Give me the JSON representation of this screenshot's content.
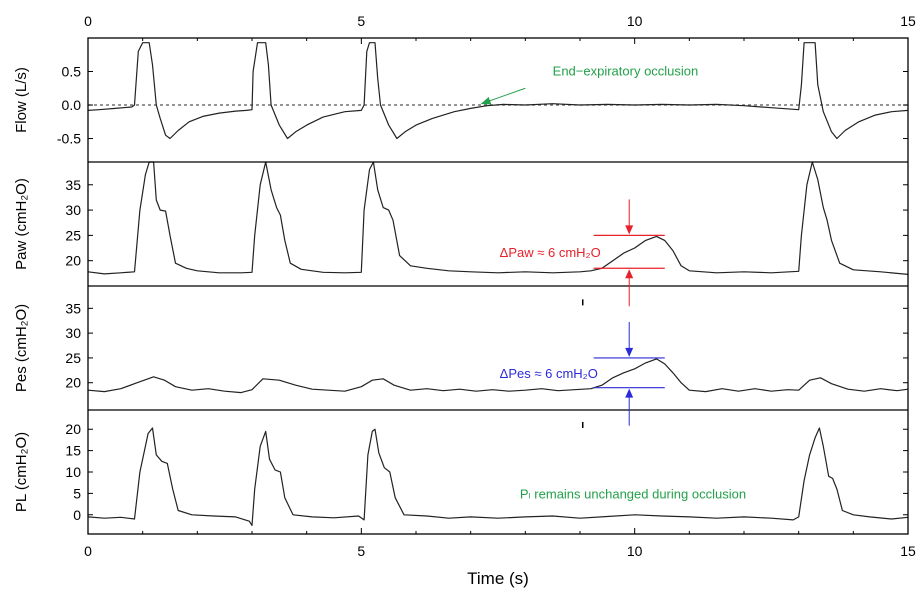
{
  "chart_data": {
    "type": "line",
    "xlabel": "Time (s)",
    "xlim": [
      0,
      15
    ],
    "xticks": [
      "0",
      "5",
      "10",
      "15"
    ],
    "x_top_ticks": [
      "0",
      "5",
      "10",
      "15"
    ],
    "colors": {
      "trace": "#222222",
      "red": "#e8202a",
      "blue": "#2a2ad8",
      "green": "#22a04a",
      "zero": "#555555"
    },
    "panels": [
      {
        "id": "flow",
        "ylabel": "Flow (L/s)",
        "ylim": [
          -0.85,
          1.0
        ],
        "yticks": [
          "0.5",
          "0.0",
          "-0.5"
        ],
        "ytick_values": [
          0.5,
          0.0,
          -0.5
        ],
        "zero_line": true,
        "points": [
          [
            0.0,
            -0.08
          ],
          [
            0.2,
            -0.07
          ],
          [
            0.5,
            -0.05
          ],
          [
            0.8,
            -0.03
          ],
          [
            0.85,
            0.0
          ],
          [
            0.92,
            0.8
          ],
          [
            1.0,
            0.93
          ],
          [
            1.12,
            0.93
          ],
          [
            1.18,
            0.6
          ],
          [
            1.25,
            0.0
          ],
          [
            1.32,
            -0.2
          ],
          [
            1.42,
            -0.45
          ],
          [
            1.5,
            -0.5
          ],
          [
            1.65,
            -0.38
          ],
          [
            1.85,
            -0.25
          ],
          [
            2.1,
            -0.17
          ],
          [
            2.4,
            -0.12
          ],
          [
            2.7,
            -0.09
          ],
          [
            2.9,
            -0.08
          ],
          [
            3.0,
            -0.07
          ],
          [
            3.02,
            0.5
          ],
          [
            3.1,
            0.93
          ],
          [
            3.25,
            0.93
          ],
          [
            3.3,
            0.6
          ],
          [
            3.35,
            0.0
          ],
          [
            3.5,
            -0.3
          ],
          [
            3.65,
            -0.5
          ],
          [
            3.8,
            -0.4
          ],
          [
            4.0,
            -0.3
          ],
          [
            4.3,
            -0.18
          ],
          [
            4.7,
            -0.1
          ],
          [
            5.0,
            -0.08
          ],
          [
            5.05,
            0.0
          ],
          [
            5.1,
            0.8
          ],
          [
            5.15,
            0.93
          ],
          [
            5.25,
            0.93
          ],
          [
            5.3,
            0.4
          ],
          [
            5.35,
            0.0
          ],
          [
            5.5,
            -0.3
          ],
          [
            5.65,
            -0.5
          ],
          [
            5.8,
            -0.4
          ],
          [
            6.0,
            -0.3
          ],
          [
            6.3,
            -0.2
          ],
          [
            6.7,
            -0.1
          ],
          [
            7.0,
            -0.05
          ],
          [
            7.3,
            -0.01
          ],
          [
            7.6,
            0.01
          ],
          [
            8.0,
            0.0
          ],
          [
            8.5,
            0.02
          ],
          [
            9.0,
            0.0
          ],
          [
            9.5,
            0.01
          ],
          [
            10.0,
            0.0
          ],
          [
            10.5,
            0.01
          ],
          [
            11.0,
            0.0
          ],
          [
            11.5,
            0.01
          ],
          [
            12.0,
            -0.01
          ],
          [
            12.5,
            -0.04
          ],
          [
            13.0,
            -0.07
          ],
          [
            13.05,
            0.3
          ],
          [
            13.1,
            0.93
          ],
          [
            13.3,
            0.93
          ],
          [
            13.35,
            0.3
          ],
          [
            13.45,
            -0.1
          ],
          [
            13.6,
            -0.4
          ],
          [
            13.7,
            -0.5
          ],
          [
            13.85,
            -0.38
          ],
          [
            14.1,
            -0.25
          ],
          [
            14.4,
            -0.15
          ],
          [
            14.7,
            -0.1
          ],
          [
            15.0,
            -0.08
          ]
        ]
      },
      {
        "id": "paw",
        "ylabel": "Paw (cmH₂O)",
        "ylim": [
          15,
          39.5
        ],
        "yticks": [
          "35",
          "30",
          "25",
          "20"
        ],
        "ytick_values": [
          35,
          30,
          25,
          20
        ],
        "points": [
          [
            0.0,
            17.8
          ],
          [
            0.3,
            17.4
          ],
          [
            0.6,
            17.6
          ],
          [
            0.85,
            17.8
          ],
          [
            0.95,
            30
          ],
          [
            1.05,
            37
          ],
          [
            1.12,
            39.5
          ],
          [
            1.2,
            39.5
          ],
          [
            1.25,
            32
          ],
          [
            1.32,
            30
          ],
          [
            1.42,
            29.8
          ],
          [
            1.5,
            25
          ],
          [
            1.6,
            19.5
          ],
          [
            1.8,
            18.5
          ],
          [
            2.0,
            18
          ],
          [
            2.4,
            17.6
          ],
          [
            2.8,
            17.6
          ],
          [
            3.0,
            17.7
          ],
          [
            3.05,
            25
          ],
          [
            3.15,
            35
          ],
          [
            3.25,
            39.5
          ],
          [
            3.35,
            34
          ],
          [
            3.45,
            30.5
          ],
          [
            3.52,
            29
          ],
          [
            3.6,
            24
          ],
          [
            3.7,
            19.5
          ],
          [
            3.9,
            18.3
          ],
          [
            4.3,
            17.7
          ],
          [
            4.7,
            17.6
          ],
          [
            5.0,
            17.7
          ],
          [
            5.05,
            30
          ],
          [
            5.15,
            38
          ],
          [
            5.22,
            39.5
          ],
          [
            5.3,
            34
          ],
          [
            5.4,
            30.5
          ],
          [
            5.5,
            30
          ],
          [
            5.58,
            28
          ],
          [
            5.7,
            21
          ],
          [
            5.9,
            19
          ],
          [
            6.2,
            18.5
          ],
          [
            6.6,
            18
          ],
          [
            7.0,
            17.8
          ],
          [
            7.5,
            17.6
          ],
          [
            8.0,
            17.8
          ],
          [
            8.5,
            17.6
          ],
          [
            9.0,
            17.8
          ],
          [
            9.2,
            18
          ],
          [
            9.4,
            18.5
          ],
          [
            9.6,
            20
          ],
          [
            9.8,
            21.5
          ],
          [
            10.0,
            22.5
          ],
          [
            10.2,
            24
          ],
          [
            10.4,
            24.8
          ],
          [
            10.55,
            24
          ],
          [
            10.7,
            22
          ],
          [
            10.85,
            19
          ],
          [
            11.0,
            18
          ],
          [
            11.5,
            17.6
          ],
          [
            12.0,
            17.8
          ],
          [
            12.5,
            17.6
          ],
          [
            13.0,
            17.9
          ],
          [
            13.05,
            25
          ],
          [
            13.15,
            35
          ],
          [
            13.25,
            39.5
          ],
          [
            13.35,
            36
          ],
          [
            13.45,
            30.5
          ],
          [
            13.52,
            28
          ],
          [
            13.6,
            24
          ],
          [
            13.75,
            19.5
          ],
          [
            14.0,
            18.2
          ],
          [
            14.5,
            17.8
          ],
          [
            15.0,
            17.3
          ]
        ]
      },
      {
        "id": "pes",
        "ylabel": "Pes (cmH₂O)",
        "ylim": [
          14.5,
          39.5
        ],
        "yticks": [
          "35",
          "30",
          "25",
          "20"
        ],
        "ytick_values": [
          35,
          30,
          25,
          20
        ],
        "points": [
          [
            0.0,
            18.5
          ],
          [
            0.3,
            18.2
          ],
          [
            0.6,
            18.8
          ],
          [
            0.9,
            20
          ],
          [
            1.2,
            21.2
          ],
          [
            1.4,
            20.5
          ],
          [
            1.6,
            19.2
          ],
          [
            1.9,
            18.5
          ],
          [
            2.2,
            18.8
          ],
          [
            2.5,
            18.3
          ],
          [
            2.8,
            18
          ],
          [
            3.0,
            18.6
          ],
          [
            3.2,
            20.8
          ],
          [
            3.5,
            20.5
          ],
          [
            3.8,
            19.5
          ],
          [
            4.1,
            18.7
          ],
          [
            4.4,
            18.5
          ],
          [
            4.7,
            18.3
          ],
          [
            5.0,
            19.2
          ],
          [
            5.2,
            20.5
          ],
          [
            5.4,
            20.8
          ],
          [
            5.6,
            19.5
          ],
          [
            5.9,
            18.5
          ],
          [
            6.2,
            18.8
          ],
          [
            6.5,
            18.4
          ],
          [
            6.8,
            18.7
          ],
          [
            7.1,
            18.3
          ],
          [
            7.4,
            18.6
          ],
          [
            7.7,
            18.3
          ],
          [
            8.0,
            18.5
          ],
          [
            8.3,
            18.8
          ],
          [
            8.6,
            18.4
          ],
          [
            8.9,
            18.6
          ],
          [
            9.2,
            18.8
          ],
          [
            9.4,
            19.5
          ],
          [
            9.6,
            21
          ],
          [
            9.8,
            22
          ],
          [
            10.0,
            22.8
          ],
          [
            10.2,
            24
          ],
          [
            10.4,
            24.8
          ],
          [
            10.55,
            23.8
          ],
          [
            10.7,
            22
          ],
          [
            10.85,
            20
          ],
          [
            11.0,
            18.5
          ],
          [
            11.3,
            18.2
          ],
          [
            11.6,
            18.8
          ],
          [
            11.9,
            18.3
          ],
          [
            12.2,
            18.8
          ],
          [
            12.5,
            18.3
          ],
          [
            12.8,
            18.6
          ],
          [
            13.0,
            18.5
          ],
          [
            13.2,
            20.5
          ],
          [
            13.4,
            21
          ],
          [
            13.6,
            19.8
          ],
          [
            13.9,
            18.7
          ],
          [
            14.2,
            18.3
          ],
          [
            14.5,
            18.8
          ],
          [
            14.8,
            18.4
          ],
          [
            15.0,
            18.7
          ]
        ]
      },
      {
        "id": "pl",
        "ylabel": "PL (cmH₂O)",
        "ylim": [
          -4.5,
          24.5
        ],
        "yticks": [
          "20",
          "15",
          "10",
          "5",
          "0"
        ],
        "ytick_values": [
          20,
          15,
          10,
          5,
          0
        ],
        "points": [
          [
            0.0,
            -0.5
          ],
          [
            0.3,
            -0.8
          ],
          [
            0.6,
            -0.6
          ],
          [
            0.85,
            -1
          ],
          [
            0.95,
            10
          ],
          [
            1.05,
            16
          ],
          [
            1.1,
            19
          ],
          [
            1.18,
            20.3
          ],
          [
            1.25,
            14
          ],
          [
            1.35,
            12.5
          ],
          [
            1.45,
            12
          ],
          [
            1.55,
            6
          ],
          [
            1.65,
            1
          ],
          [
            1.9,
            0
          ],
          [
            2.3,
            -0.3
          ],
          [
            2.7,
            -0.5
          ],
          [
            2.95,
            -1.5
          ],
          [
            3.0,
            -2.5
          ],
          [
            3.05,
            6
          ],
          [
            3.15,
            16
          ],
          [
            3.25,
            19.5
          ],
          [
            3.32,
            13
          ],
          [
            3.42,
            10.5
          ],
          [
            3.52,
            10
          ],
          [
            3.6,
            4
          ],
          [
            3.75,
            0
          ],
          [
            4.1,
            -0.5
          ],
          [
            4.5,
            -0.7
          ],
          [
            4.95,
            -0.3
          ],
          [
            5.05,
            -1.2
          ],
          [
            5.12,
            14
          ],
          [
            5.2,
            19.5
          ],
          [
            5.25,
            20
          ],
          [
            5.32,
            14.5
          ],
          [
            5.42,
            11
          ],
          [
            5.52,
            10
          ],
          [
            5.62,
            4
          ],
          [
            5.78,
            0
          ],
          [
            6.2,
            -0.3
          ],
          [
            6.6,
            -0.8
          ],
          [
            7.0,
            -0.5
          ],
          [
            7.5,
            -0.8
          ],
          [
            8.0,
            -0.5
          ],
          [
            8.5,
            -0.3
          ],
          [
            9.0,
            -0.8
          ],
          [
            9.5,
            -0.4
          ],
          [
            10.0,
            0
          ],
          [
            10.5,
            -0.3
          ],
          [
            11.0,
            -0.5
          ],
          [
            11.5,
            -0.8
          ],
          [
            12.0,
            -0.5
          ],
          [
            12.5,
            -0.8
          ],
          [
            12.9,
            -1.2
          ],
          [
            13.0,
            -0.5
          ],
          [
            13.1,
            8
          ],
          [
            13.2,
            14
          ],
          [
            13.3,
            18
          ],
          [
            13.38,
            20.3
          ],
          [
            13.45,
            16
          ],
          [
            13.55,
            9
          ],
          [
            13.62,
            8.5
          ],
          [
            13.7,
            6
          ],
          [
            13.8,
            1
          ],
          [
            14.0,
            0
          ],
          [
            14.3,
            -0.5
          ],
          [
            14.7,
            -1
          ],
          [
            15.0,
            -0.6
          ]
        ]
      }
    ],
    "markers": [
      {
        "panel": "pes",
        "x": 9.05,
        "y": 36.2
      },
      {
        "panel": "pl",
        "x": 9.05,
        "y": 21.0
      }
    ],
    "annotations": {
      "flow_text": "End−expiratory  occlusion",
      "flow_arrow_from": [
        8.0,
        0.25
      ],
      "flow_arrow_to": [
        7.2,
        0.02
      ],
      "paw": {
        "delta_label": "ΔPaw ≈ 6 cmH₂O",
        "top": 25,
        "bottom": 18.5,
        "x": 9.9,
        "x_left": 9.25,
        "x_right": 10.55
      },
      "pes": {
        "delta_label": "ΔPes ≈ 6 cmH₂O",
        "top": 25,
        "bottom": 19,
        "x": 9.9,
        "x_left": 9.25,
        "x_right": 10.55
      },
      "pl_text": "Pₗ remains unchanged during occlusion"
    }
  }
}
